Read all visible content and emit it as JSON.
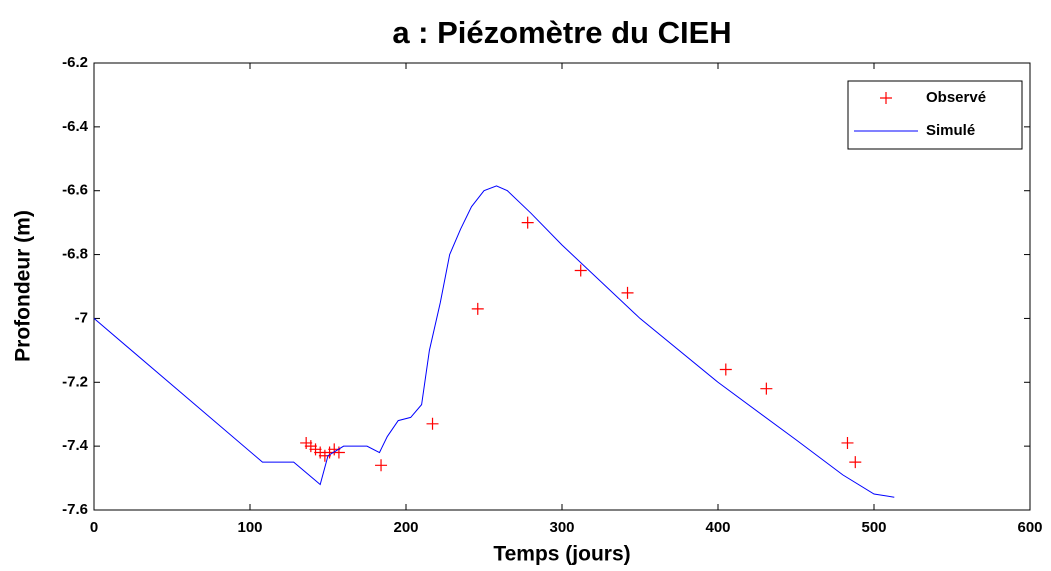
{
  "chart_data": {
    "type": "line",
    "title": "a : Piézomètre du CIEH",
    "xlabel": "Temps (jours)",
    "ylabel": "Profondeur (m)",
    "xlim": [
      0,
      600
    ],
    "xticks": [
      0,
      100,
      200,
      300,
      400,
      500,
      600
    ],
    "ylim": [
      -7.6,
      -6.2
    ],
    "yticks": [
      -6.2,
      -6.4,
      -6.6,
      -6.8,
      -7,
      -7.2,
      -7.4,
      -7.6
    ],
    "legend": "upper right",
    "series": [
      {
        "name": "Observé",
        "color": "#ff0000",
        "marker": "+",
        "x": [
          136,
          139,
          142,
          145,
          148,
          151,
          154,
          157,
          184,
          217,
          246,
          278,
          312,
          342,
          405,
          431,
          483,
          488
        ],
        "values": [
          -7.39,
          -7.4,
          -7.41,
          -7.42,
          -7.43,
          -7.42,
          -7.41,
          -7.42,
          -7.46,
          -7.33,
          -6.97,
          -6.7,
          -6.85,
          -6.92,
          -7.16,
          -7.22,
          -7.39,
          -7.45
        ]
      },
      {
        "name": "Simulé",
        "color": "#0000ff",
        "x": [
          0,
          108,
          128,
          145,
          150,
          160,
          175,
          183,
          188,
          195,
          203,
          210,
          215,
          222,
          228,
          235,
          242,
          250,
          258,
          265,
          280,
          300,
          350,
          400,
          450,
          480,
          500,
          513
        ],
        "values": [
          -7.0,
          -7.45,
          -7.45,
          -7.52,
          -7.43,
          -7.4,
          -7.4,
          -7.42,
          -7.37,
          -7.32,
          -7.31,
          -7.27,
          -7.1,
          -6.95,
          -6.8,
          -6.72,
          -6.65,
          -6.6,
          -6.585,
          -6.6,
          -6.67,
          -6.77,
          -7.0,
          -7.2,
          -7.38,
          -7.49,
          -7.55,
          -7.56
        ]
      }
    ]
  }
}
